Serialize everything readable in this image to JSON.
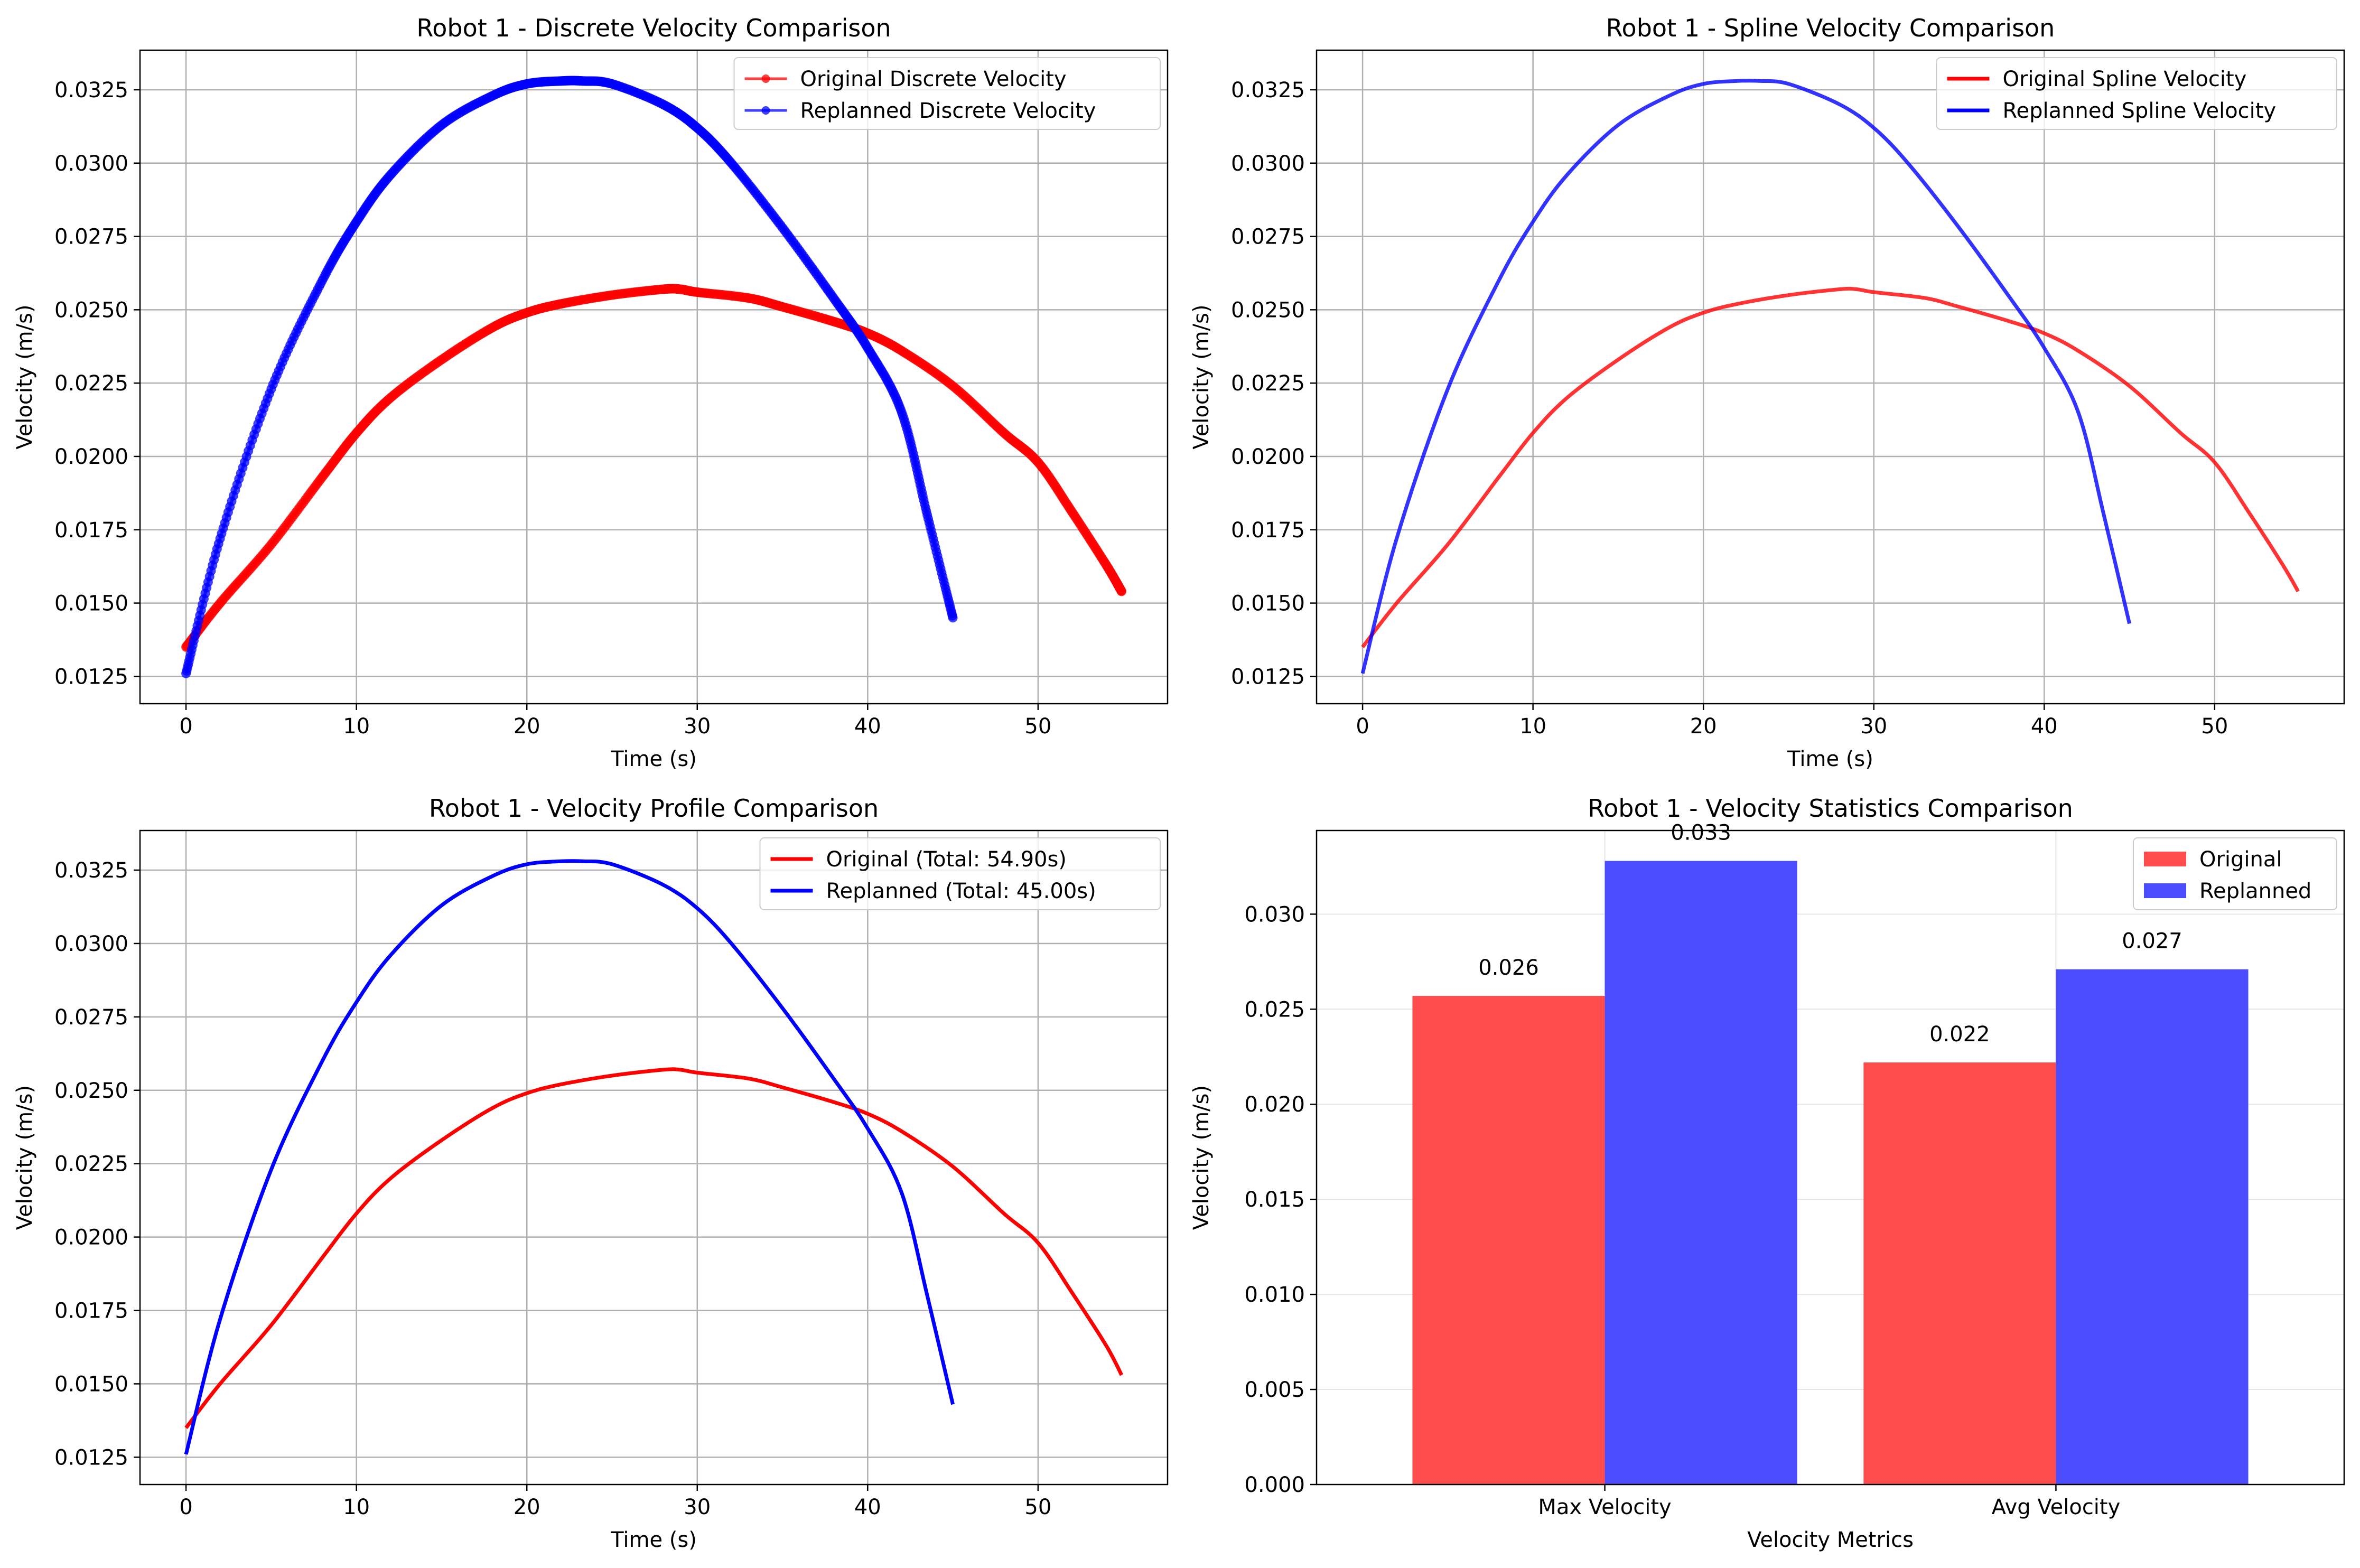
{
  "figure": {
    "background": "#ffffff"
  },
  "colors": {
    "original": "#ff0000",
    "replanned": "#0000ff",
    "original_bar": "#ff4c4c",
    "replanned_bar": "#4c4cff",
    "grid": "#b0b0b0"
  },
  "chart_data": [
    {
      "type": "line",
      "title": "Robot 1 - Discrete Velocity Comparison",
      "xlabel": "Time (s)",
      "ylabel": "Velocity (m/s)",
      "xlim": [
        -2.7,
        57.6
      ],
      "ylim": [
        0.01157,
        0.03385
      ],
      "xticks": [
        0,
        10,
        20,
        30,
        40,
        50
      ],
      "yticks": [
        0.0125,
        0.015,
        0.0175,
        0.02,
        0.0225,
        0.025,
        0.0275,
        0.03,
        0.0325
      ],
      "xtick_labels": [
        "0",
        "10",
        "20",
        "30",
        "40",
        "50"
      ],
      "ytick_labels": [
        "0.0125",
        "0.0150",
        "0.0175",
        "0.0200",
        "0.0225",
        "0.0250",
        "0.0275",
        "0.0300",
        "0.0325"
      ],
      "grid": true,
      "legend": "top-right",
      "markers": true,
      "series": [
        {
          "name": "Original Discrete Velocity",
          "color_key": "original",
          "x": [
            0,
            2,
            5,
            8,
            10,
            12,
            15,
            18,
            20,
            22,
            25,
            28,
            29,
            30,
            33,
            35,
            38,
            40,
            42,
            45,
            48,
            50,
            52,
            54,
            54.9
          ],
          "y": [
            0.0135,
            0.015,
            0.017,
            0.0193,
            0.0208,
            0.022,
            0.0233,
            0.0244,
            0.0249,
            0.0252,
            0.0255,
            0.0257,
            0.0257,
            0.0256,
            0.0254,
            0.0251,
            0.0246,
            0.0242,
            0.0236,
            0.0224,
            0.0208,
            0.0198,
            0.0181,
            0.0163,
            0.0154
          ]
        },
        {
          "name": "Replanned Discrete Velocity",
          "color_key": "replanned",
          "x": [
            0,
            2,
            5,
            8,
            10,
            12,
            15,
            18,
            20,
            22,
            23.3,
            25,
            28,
            30,
            32,
            35,
            38,
            40,
            42,
            43.5,
            45
          ],
          "y": [
            0.0126,
            0.0172,
            0.0223,
            0.026,
            0.028,
            0.0296,
            0.0313,
            0.0323,
            0.0327,
            0.0328,
            0.0328,
            0.0327,
            0.032,
            0.0312,
            0.03,
            0.0278,
            0.0254,
            0.0237,
            0.0215,
            0.018,
            0.0145
          ]
        }
      ]
    },
    {
      "type": "line",
      "title": "Robot 1 - Spline Velocity Comparison",
      "xlabel": "Time (s)",
      "ylabel": "Velocity (m/s)",
      "xlim": [
        -2.7,
        57.6
      ],
      "ylim": [
        0.01157,
        0.03385
      ],
      "xticks": [
        0,
        10,
        20,
        30,
        40,
        50
      ],
      "yticks": [
        0.0125,
        0.015,
        0.0175,
        0.02,
        0.0225,
        0.025,
        0.0275,
        0.03,
        0.0325
      ],
      "xtick_labels": [
        "0",
        "10",
        "20",
        "30",
        "40",
        "50"
      ],
      "ytick_labels": [
        "0.0125",
        "0.0150",
        "0.0175",
        "0.0200",
        "0.0225",
        "0.0250",
        "0.0275",
        "0.0300",
        "0.0325"
      ],
      "grid": true,
      "legend": "top-right",
      "markers": false,
      "series": [
        {
          "name": "Original Spline Velocity",
          "color_key": "original",
          "x": [
            0,
            2,
            5,
            8,
            10,
            12,
            15,
            18,
            20,
            22,
            25,
            28,
            29,
            30,
            33,
            35,
            38,
            40,
            42,
            45,
            48,
            50,
            52,
            54,
            54.9
          ],
          "y": [
            0.0135,
            0.015,
            0.017,
            0.0193,
            0.0208,
            0.022,
            0.0233,
            0.0244,
            0.0249,
            0.0252,
            0.0255,
            0.0257,
            0.0257,
            0.0256,
            0.0254,
            0.0251,
            0.0246,
            0.0242,
            0.0236,
            0.0224,
            0.0208,
            0.0198,
            0.0181,
            0.0163,
            0.0154
          ]
        },
        {
          "name": "Replanned Spline Velocity",
          "color_key": "replanned",
          "x": [
            0,
            2,
            5,
            8,
            10,
            12,
            15,
            18,
            20,
            22,
            23.3,
            25,
            28,
            30,
            32,
            35,
            38,
            40,
            42,
            43.5,
            45
          ],
          "y": [
            0.0126,
            0.0172,
            0.0223,
            0.026,
            0.028,
            0.0296,
            0.0313,
            0.0323,
            0.0327,
            0.0328,
            0.0328,
            0.0327,
            0.032,
            0.0312,
            0.03,
            0.0278,
            0.0254,
            0.0237,
            0.0215,
            0.018,
            0.0143
          ]
        }
      ]
    },
    {
      "type": "line",
      "title": "Robot 1 - Velocity Profile Comparison",
      "xlabel": "Time (s)",
      "ylabel": "Velocity (m/s)",
      "xlim": [
        -2.7,
        57.6
      ],
      "ylim": [
        0.01157,
        0.03385
      ],
      "xticks": [
        0,
        10,
        20,
        30,
        40,
        50
      ],
      "yticks": [
        0.0125,
        0.015,
        0.0175,
        0.02,
        0.0225,
        0.025,
        0.0275,
        0.03,
        0.0325
      ],
      "xtick_labels": [
        "0",
        "10",
        "20",
        "30",
        "40",
        "50"
      ],
      "ytick_labels": [
        "0.0125",
        "0.0150",
        "0.0175",
        "0.0200",
        "0.0225",
        "0.0250",
        "0.0275",
        "0.0300",
        "0.0325"
      ],
      "grid": true,
      "legend": "top-right",
      "markers": false,
      "series": [
        {
          "name": "Original (Total: 54.90s)",
          "color_key": "original",
          "x": [
            0,
            2,
            5,
            8,
            10,
            12,
            15,
            18,
            20,
            22,
            25,
            28,
            29,
            30,
            33,
            35,
            38,
            40,
            42,
            45,
            48,
            50,
            52,
            54,
            54.9
          ],
          "y": [
            0.0135,
            0.015,
            0.017,
            0.0193,
            0.0208,
            0.022,
            0.0233,
            0.0244,
            0.0249,
            0.0252,
            0.0255,
            0.0257,
            0.0257,
            0.0256,
            0.0254,
            0.0251,
            0.0246,
            0.0242,
            0.0236,
            0.0224,
            0.0208,
            0.0198,
            0.0181,
            0.0163,
            0.0153
          ]
        },
        {
          "name": "Replanned (Total: 45.00s)",
          "color_key": "replanned",
          "x": [
            0,
            2,
            5,
            8,
            10,
            12,
            15,
            18,
            20,
            22,
            23.3,
            25,
            28,
            30,
            32,
            35,
            38,
            40,
            42,
            43.5,
            45
          ],
          "y": [
            0.0126,
            0.0172,
            0.0223,
            0.026,
            0.028,
            0.0296,
            0.0313,
            0.0323,
            0.0327,
            0.0328,
            0.0328,
            0.0327,
            0.032,
            0.0312,
            0.03,
            0.0278,
            0.0254,
            0.0237,
            0.0215,
            0.018,
            0.0143
          ]
        }
      ]
    },
    {
      "type": "bar",
      "title": "Robot 1 - Velocity Statistics Comparison",
      "xlabel": "Velocity Metrics",
      "ylabel": "Velocity (m/s)",
      "categories": [
        "Max Velocity",
        "Avg Velocity"
      ],
      "ylim": [
        0,
        0.0344
      ],
      "yticks": [
        0.0,
        0.005,
        0.01,
        0.015,
        0.02,
        0.025,
        0.03
      ],
      "ytick_labels": [
        "0.000",
        "0.005",
        "0.010",
        "0.015",
        "0.020",
        "0.025",
        "0.030"
      ],
      "grid": true,
      "legend": "top-right",
      "series": [
        {
          "name": "Original",
          "color_key": "original_bar",
          "values": [
            0.0257,
            0.0222
          ],
          "labels": [
            "0.026",
            "0.022"
          ]
        },
        {
          "name": "Replanned",
          "color_key": "replanned_bar",
          "values": [
            0.0328,
            0.0271
          ],
          "labels": [
            "0.033",
            "0.027"
          ]
        }
      ]
    }
  ]
}
